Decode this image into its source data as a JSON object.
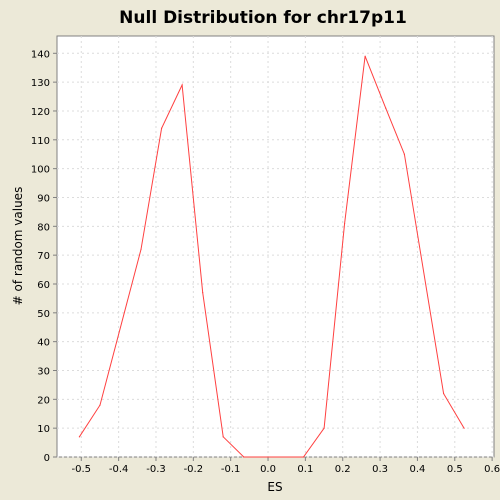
{
  "chart_data": {
    "type": "line",
    "title": "Null Distribution for chr17p11",
    "xlabel": "ES",
    "ylabel": "# of random values",
    "xlim": [
      -0.565,
      0.605
    ],
    "ylim": [
      0,
      146
    ],
    "grid": true,
    "xticks": [
      -0.5,
      -0.4,
      -0.3,
      -0.2,
      -0.1,
      0.0,
      0.1,
      0.2,
      0.3,
      0.4,
      0.5,
      0.6
    ],
    "xtick_labels": [
      "-0.5",
      "-0.4",
      "-0.3",
      "-0.2",
      "-0.1",
      "0.0",
      "0.1",
      "0.2",
      "0.3",
      "0.4",
      "0.5",
      "0.6"
    ],
    "yticks": [
      0,
      10,
      20,
      30,
      40,
      50,
      60,
      70,
      80,
      90,
      100,
      110,
      120,
      130,
      140
    ],
    "ytick_labels": [
      "0",
      "10",
      "20",
      "30",
      "40",
      "50",
      "60",
      "70",
      "80",
      "90",
      "100",
      "110",
      "120",
      "130",
      "140"
    ],
    "series": [
      {
        "color": "#FF4040",
        "x": [
          -0.505,
          -0.45,
          -0.34,
          -0.285,
          -0.23,
          -0.175,
          -0.12,
          -0.065,
          0.095,
          0.15,
          0.205,
          0.26,
          0.315,
          0.365,
          0.47,
          0.525
        ],
        "y": [
          7,
          18,
          72,
          114,
          129,
          57,
          7,
          0,
          0,
          10,
          81,
          139,
          121,
          105,
          22,
          10
        ]
      }
    ]
  },
  "colors": {
    "background": "#ECE9D8",
    "plot_background": "#FFFFFF",
    "grid": "#DCDCDC",
    "axis": "#808080",
    "text": "#000000",
    "series": "#FF4040"
  }
}
